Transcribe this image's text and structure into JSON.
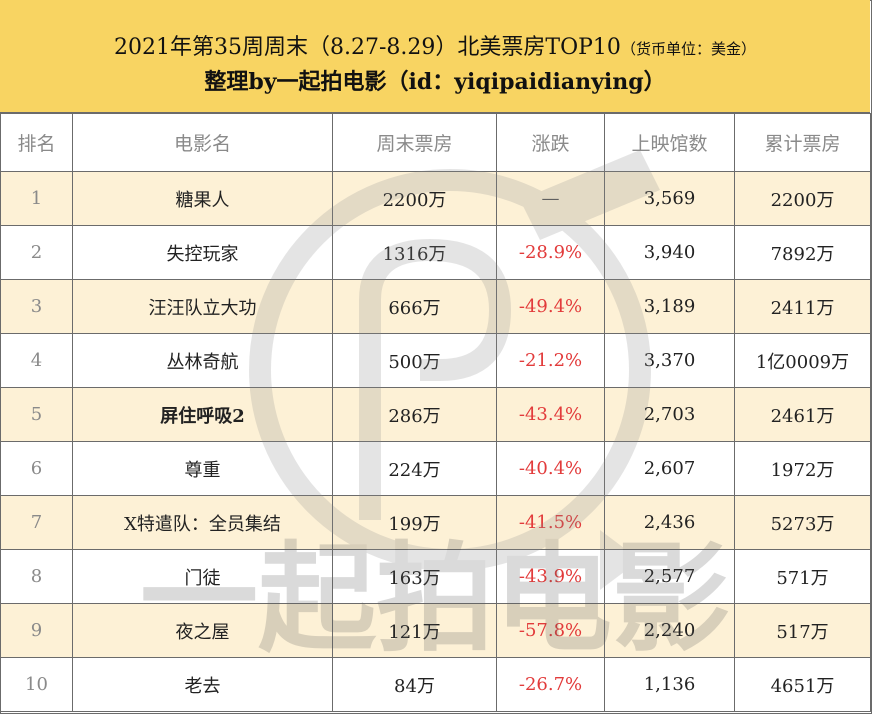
{
  "header": {
    "title": "2021年第35周周末（8.27-8.29）北美票房TOP10",
    "unit": "（货币单位：美金）",
    "subtitle": "整理by一起拍电影（id：yiqipaidianying）"
  },
  "table": {
    "columns": [
      "排名",
      "电影名",
      "周末票房",
      "涨跌",
      "上映馆数",
      "累计票房"
    ],
    "rows": [
      {
        "rank": "1",
        "name": "糖果人",
        "weekend": "2200万",
        "change": "—",
        "theaters": "3,569",
        "total": "2200万"
      },
      {
        "rank": "2",
        "name": "失控玩家",
        "weekend": "1316万",
        "change": "-28.9%",
        "theaters": "3,940",
        "total": "7892万"
      },
      {
        "rank": "3",
        "name": "汪汪队立大功",
        "weekend": "666万",
        "change": "-49.4%",
        "theaters": "3,189",
        "total": "2411万"
      },
      {
        "rank": "4",
        "name": "丛林奇航",
        "weekend": "500万",
        "change": "-21.2%",
        "theaters": "3,370",
        "total": "1亿0009万"
      },
      {
        "rank": "5",
        "name": "屏住呼吸2",
        "weekend": "286万",
        "change": "-43.4%",
        "theaters": "2,703",
        "total": "2461万"
      },
      {
        "rank": "6",
        "name": "尊重",
        "weekend": "224万",
        "change": "-40.4%",
        "theaters": "2,607",
        "total": "1972万"
      },
      {
        "rank": "7",
        "name": "X特遣队：全员集结",
        "weekend": "199万",
        "change": "-41.5%",
        "theaters": "2,436",
        "total": "5273万"
      },
      {
        "rank": "8",
        "name": "门徒",
        "weekend": "163万",
        "change": "-43.9%",
        "theaters": "2,577",
        "total": "571万"
      },
      {
        "rank": "9",
        "name": "夜之屋",
        "weekend": "121万",
        "change": "-57.8%",
        "theaters": "2,240",
        "total": "517万"
      },
      {
        "rank": "10",
        "name": "老去",
        "weekend": "84万",
        "change": "-26.7%",
        "theaters": "1,136",
        "total": "4651万"
      }
    ]
  },
  "watermark": {
    "text": "一起拍电影"
  },
  "colors": {
    "header_bg": "#f8d462",
    "alt_row_bg": "#fdf1d6",
    "negative_change": "#e23b3b"
  }
}
